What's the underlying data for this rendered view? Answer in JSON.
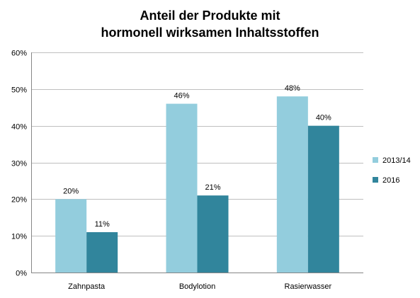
{
  "chart_data": {
    "type": "bar",
    "title_lines": [
      "Anteil der Produkte mit",
      "hormonell wirksamen Inhaltsstoffen"
    ],
    "categories": [
      "Zahnpasta",
      "Bodylotion",
      "Rasierwasser"
    ],
    "series": [
      {
        "name": "2013/14",
        "values": [
          20,
          46,
          48
        ],
        "labels": [
          "20%",
          "46%",
          "48%"
        ],
        "color": "#93CDDD"
      },
      {
        "name": "2016",
        "values": [
          11,
          21,
          40
        ],
        "labels": [
          "11%",
          "21%",
          "40%"
        ],
        "color": "#31859C"
      }
    ],
    "ylim": [
      0,
      60
    ],
    "y_ticks": [
      0,
      10,
      20,
      30,
      40,
      50,
      60
    ],
    "y_tick_labels": [
      "0%",
      "10%",
      "20%",
      "30%",
      "40%",
      "50%",
      "60%"
    ],
    "grid": true,
    "legend_position": "right"
  }
}
